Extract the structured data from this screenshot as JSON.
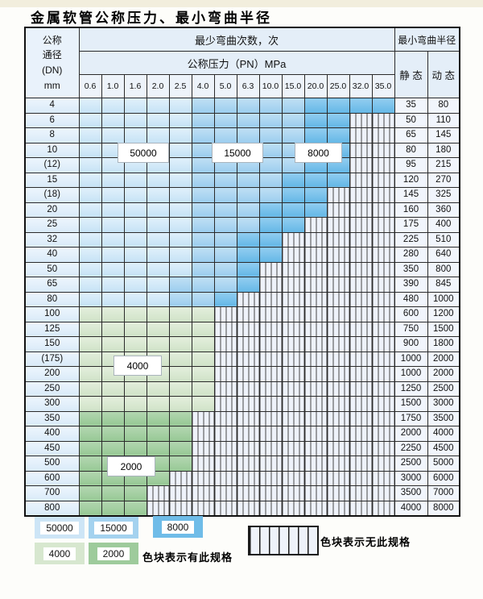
{
  "title": "金属软管公称压力、最小弯曲半径",
  "colors": {
    "cycles_50000": "#cde5f6",
    "cycles_15000": "#a4d2ef",
    "cycles_8000": "#6fbce8",
    "cycles_4000": "#d7e7cf",
    "cycles_2000": "#9ecb9c",
    "no_spec_cell": "#eef2fa"
  },
  "table": {
    "corner_lines": [
      "公称",
      "通径",
      "(DN)",
      "mm"
    ],
    "bend_cycles_header": "最少弯曲次数，次",
    "radius_header": "最小弯曲半径",
    "pressure_header": "公称压力（PN）MPa",
    "pressure_values": [
      "0.6",
      "1.0",
      "1.6",
      "2.0",
      "2.5",
      "4.0",
      "5.0",
      "6.3",
      "10.0",
      "15.0",
      "20.0",
      "25.0",
      "32.0",
      "35.0"
    ],
    "static_label": "静 态",
    "dynamic_label": "动 态",
    "rows": [
      {
        "dn": "4",
        "static": "35",
        "dynamic": "80",
        "bands": [
          [
            "b1",
            5
          ],
          [
            "b2",
            5
          ],
          [
            "b3",
            4
          ]
        ]
      },
      {
        "dn": "6",
        "static": "50",
        "dynamic": "110",
        "bands": [
          [
            "b1",
            5
          ],
          [
            "b2",
            5
          ],
          [
            "b3",
            2
          ],
          [
            "h",
            2
          ]
        ]
      },
      {
        "dn": "8",
        "static": "65",
        "dynamic": "145",
        "bands": [
          [
            "b1",
            5
          ],
          [
            "b2",
            5
          ],
          [
            "b3",
            2
          ],
          [
            "h",
            2
          ]
        ]
      },
      {
        "dn": "10",
        "static": "80",
        "dynamic": "180",
        "bands": [
          [
            "b1",
            5
          ],
          [
            "b2",
            5
          ],
          [
            "b3",
            2
          ],
          [
            "h",
            2
          ]
        ]
      },
      {
        "dn": "(12)",
        "static": "95",
        "dynamic": "215",
        "bands": [
          [
            "b1",
            5
          ],
          [
            "b2",
            5
          ],
          [
            "b3",
            2
          ],
          [
            "h",
            2
          ]
        ]
      },
      {
        "dn": "15",
        "static": "120",
        "dynamic": "270",
        "bands": [
          [
            "b1",
            5
          ],
          [
            "b2",
            4
          ],
          [
            "b3",
            3
          ],
          [
            "h",
            2
          ]
        ]
      },
      {
        "dn": "(18)",
        "static": "145",
        "dynamic": "325",
        "bands": [
          [
            "b1",
            5
          ],
          [
            "b2",
            4
          ],
          [
            "b3",
            2
          ],
          [
            "h",
            3
          ]
        ]
      },
      {
        "dn": "20",
        "static": "160",
        "dynamic": "360",
        "bands": [
          [
            "b1",
            5
          ],
          [
            "b2",
            3
          ],
          [
            "b3",
            3
          ],
          [
            "h",
            3
          ]
        ]
      },
      {
        "dn": "25",
        "static": "175",
        "dynamic": "400",
        "bands": [
          [
            "b1",
            5
          ],
          [
            "b2",
            3
          ],
          [
            "b3",
            2
          ],
          [
            "h",
            4
          ]
        ]
      },
      {
        "dn": "32",
        "static": "225",
        "dynamic": "510",
        "bands": [
          [
            "b1",
            5
          ],
          [
            "b2",
            2
          ],
          [
            "b3",
            2
          ],
          [
            "h",
            5
          ]
        ]
      },
      {
        "dn": "40",
        "static": "280",
        "dynamic": "640",
        "bands": [
          [
            "b1",
            5
          ],
          [
            "b2",
            2
          ],
          [
            "b3",
            2
          ],
          [
            "h",
            5
          ]
        ]
      },
      {
        "dn": "50",
        "static": "350",
        "dynamic": "800",
        "bands": [
          [
            "b1",
            5
          ],
          [
            "b2",
            2
          ],
          [
            "b3",
            1
          ],
          [
            "h",
            6
          ]
        ]
      },
      {
        "dn": "65",
        "static": "390",
        "dynamic": "845",
        "bands": [
          [
            "b1",
            4
          ],
          [
            "b2",
            3
          ],
          [
            "b3",
            1
          ],
          [
            "h",
            6
          ]
        ]
      },
      {
        "dn": "80",
        "static": "480",
        "dynamic": "1000",
        "bands": [
          [
            "b1",
            4
          ],
          [
            "b2",
            2
          ],
          [
            "b3",
            1
          ],
          [
            "h",
            7
          ]
        ]
      },
      {
        "dn": "100",
        "static": "600",
        "dynamic": "1200",
        "bands": [
          [
            "g1",
            6
          ],
          [
            "h",
            8
          ]
        ]
      },
      {
        "dn": "125",
        "static": "750",
        "dynamic": "1500",
        "bands": [
          [
            "g1",
            6
          ],
          [
            "h",
            8
          ]
        ]
      },
      {
        "dn": "150",
        "static": "900",
        "dynamic": "1800",
        "bands": [
          [
            "g1",
            6
          ],
          [
            "h",
            8
          ]
        ]
      },
      {
        "dn": "(175)",
        "static": "1000",
        "dynamic": "2000",
        "bands": [
          [
            "g1",
            6
          ],
          [
            "h",
            8
          ]
        ]
      },
      {
        "dn": "200",
        "static": "1000",
        "dynamic": "2000",
        "bands": [
          [
            "g1",
            6
          ],
          [
            "h",
            8
          ]
        ]
      },
      {
        "dn": "250",
        "static": "1250",
        "dynamic": "2500",
        "bands": [
          [
            "g1",
            6
          ],
          [
            "h",
            8
          ]
        ]
      },
      {
        "dn": "300",
        "static": "1500",
        "dynamic": "3000",
        "bands": [
          [
            "g1",
            6
          ],
          [
            "h",
            8
          ]
        ]
      },
      {
        "dn": "350",
        "static": "1750",
        "dynamic": "3500",
        "bands": [
          [
            "g2",
            5
          ],
          [
            "h",
            9
          ]
        ]
      },
      {
        "dn": "400",
        "static": "2000",
        "dynamic": "4000",
        "bands": [
          [
            "g2",
            5
          ],
          [
            "h",
            9
          ]
        ]
      },
      {
        "dn": "450",
        "static": "2250",
        "dynamic": "4500",
        "bands": [
          [
            "g2",
            5
          ],
          [
            "h",
            9
          ]
        ]
      },
      {
        "dn": "500",
        "static": "2500",
        "dynamic": "5000",
        "bands": [
          [
            "g2",
            5
          ],
          [
            "h",
            9
          ]
        ]
      },
      {
        "dn": "600",
        "static": "3000",
        "dynamic": "6000",
        "bands": [
          [
            "g2",
            4
          ],
          [
            "h",
            10
          ]
        ]
      },
      {
        "dn": "700",
        "static": "3500",
        "dynamic": "7000",
        "bands": [
          [
            "g2",
            3
          ],
          [
            "h",
            11
          ]
        ]
      },
      {
        "dn": "800",
        "static": "4000",
        "dynamic": "8000",
        "bands": [
          [
            "g2",
            3
          ],
          [
            "h",
            11
          ]
        ]
      }
    ]
  },
  "overlays": [
    {
      "text": "50000"
    },
    {
      "text": "15000"
    },
    {
      "text": "8000"
    },
    {
      "text": "4000"
    },
    {
      "text": "2000"
    }
  ],
  "legend": {
    "swatches": [
      {
        "text": "50000"
      },
      {
        "text": "15000"
      },
      {
        "text": "8000"
      },
      {
        "text": "4000"
      },
      {
        "text": "2000"
      }
    ],
    "available_label": "色块表示有此规格",
    "unavailable_label": "色块表示无此规格"
  }
}
